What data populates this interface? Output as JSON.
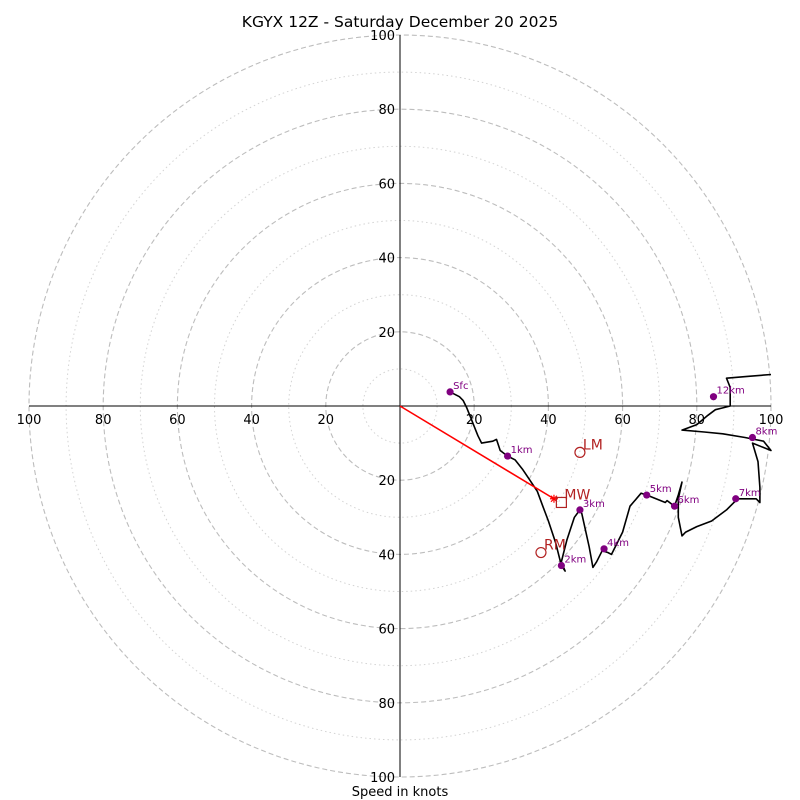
{
  "chart_data": {
    "type": "hodograph",
    "title": "KGYX 12Z - Saturday December 20 2025",
    "xlabel": "Speed in knots",
    "units": "knots",
    "range": [
      -100,
      100
    ],
    "rings": {
      "major": [
        20,
        40,
        60,
        80,
        100
      ],
      "minor": [
        10,
        30,
        50,
        70,
        90
      ]
    },
    "tick_labels": {
      "x_left": [
        "100",
        "80",
        "60",
        "40",
        "20"
      ],
      "x_right": [
        "20",
        "40",
        "60",
        "80",
        "100"
      ],
      "y_top": [
        "100",
        "80",
        "60",
        "40",
        "20"
      ],
      "y_bottom": [
        "20",
        "40",
        "60",
        "80",
        "100"
      ]
    },
    "hodograph_trace_uv": [
      [
        13.5,
        3.8
      ],
      [
        16,
        2.5
      ],
      [
        17,
        1.5
      ],
      [
        18,
        -0.5
      ],
      [
        19,
        -3
      ],
      [
        20,
        -5.5
      ],
      [
        21,
        -8
      ],
      [
        22,
        -10
      ],
      [
        25,
        -9.5
      ],
      [
        26,
        -9
      ],
      [
        27,
        -12
      ],
      [
        29,
        -13.5
      ],
      [
        31,
        -14.5
      ],
      [
        33,
        -17
      ],
      [
        35,
        -20
      ],
      [
        37,
        -23
      ],
      [
        38.5,
        -27
      ],
      [
        40,
        -31
      ],
      [
        41,
        -34
      ],
      [
        42,
        -37
      ],
      [
        43,
        -41
      ],
      [
        43.5,
        -43
      ],
      [
        44.5,
        -44.5
      ],
      [
        43.5,
        -42
      ],
      [
        44,
        -40
      ],
      [
        45,
        -36
      ],
      [
        46,
        -33
      ],
      [
        47,
        -30
      ],
      [
        48.5,
        -28
      ],
      [
        49,
        -29
      ],
      [
        51,
        -38
      ],
      [
        52,
        -43.5
      ],
      [
        53,
        -42
      ],
      [
        54.5,
        -39
      ],
      [
        56,
        -39.5
      ],
      [
        57,
        -40
      ],
      [
        60,
        -34
      ],
      [
        62,
        -27
      ],
      [
        65,
        -23.5
      ],
      [
        66.5,
        -24
      ],
      [
        69,
        -25
      ],
      [
        71.5,
        -26
      ],
      [
        72,
        -25.5
      ],
      [
        74,
        -27
      ],
      [
        75,
        -24
      ],
      [
        76,
        -20.5
      ],
      [
        75,
        -25
      ],
      [
        75,
        -30
      ],
      [
        76,
        -35
      ],
      [
        77,
        -34
      ],
      [
        80,
        -32.5
      ],
      [
        84,
        -31
      ],
      [
        88,
        -28
      ],
      [
        91,
        -25
      ],
      [
        96,
        -25
      ],
      [
        97,
        -26
      ],
      [
        97,
        -22
      ],
      [
        96.5,
        -15
      ],
      [
        95,
        -10
      ],
      [
        100,
        -12
      ],
      [
        98,
        -9.5
      ],
      [
        93,
        -8.5
      ],
      [
        87,
        -7.5
      ],
      [
        82,
        -7
      ],
      [
        76,
        -6.5
      ],
      [
        80,
        -5
      ],
      [
        83,
        -2.5
      ],
      [
        85,
        -1
      ],
      [
        87,
        -0.5
      ],
      [
        89,
        0
      ],
      [
        89,
        5
      ],
      [
        88,
        7.5
      ],
      [
        94,
        8
      ],
      [
        100,
        8.5
      ]
    ],
    "height_markers": [
      {
        "label": "Sfc",
        "u": 13.5,
        "v": 3.8
      },
      {
        "label": "1km",
        "u": 29,
        "v": -13.5
      },
      {
        "label": "2km",
        "u": 43.5,
        "v": -43
      },
      {
        "label": "3km",
        "u": 48.5,
        "v": -28
      },
      {
        "label": "4km",
        "u": 55,
        "v": -38.5
      },
      {
        "label": "5km",
        "u": 66.5,
        "v": -24
      },
      {
        "label": "6km",
        "u": 74,
        "v": -27
      },
      {
        "label": "7km",
        "u": 90.5,
        "v": -25
      },
      {
        "label": "8km",
        "u": 95,
        "v": -8.5
      },
      {
        "label": "12km",
        "u": 84.5,
        "v": 2.5
      }
    ],
    "storm_motions": [
      {
        "label": "LM",
        "u": 48.5,
        "v": -12.5,
        "marker": "circle"
      },
      {
        "label": "MW",
        "u": 43.5,
        "v": -26,
        "marker": "square"
      },
      {
        "label": "RM",
        "u": 38,
        "v": -39.5,
        "marker": "circle"
      }
    ],
    "shear_vector": {
      "from": [
        0,
        0
      ],
      "to": [
        41.5,
        -25
      ]
    },
    "colors": {
      "trace": "#000000",
      "height_marker": "#800080",
      "storm_motion": "#b22222",
      "shear_vector": "#ff0000",
      "major_ring": "#bdbdbd",
      "minor_ring": "#d3d3d3"
    }
  }
}
